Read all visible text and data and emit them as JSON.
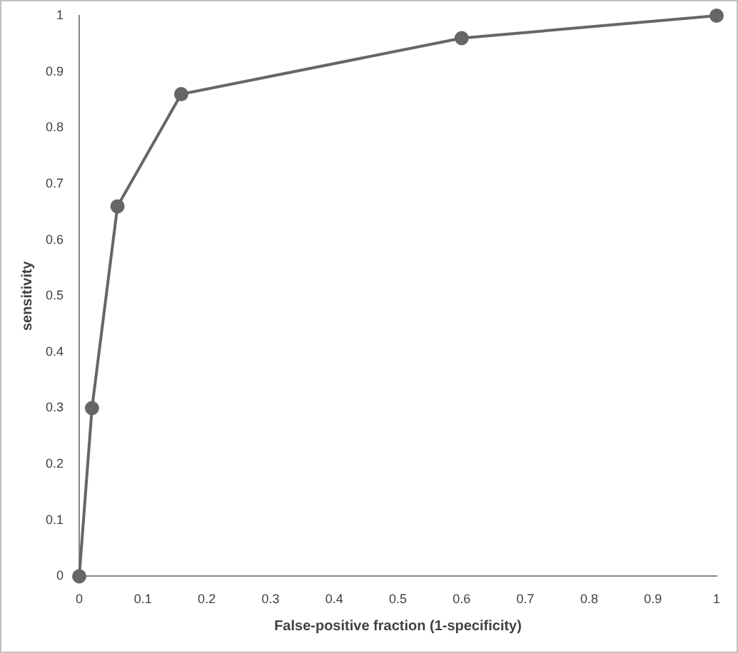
{
  "chart_data": {
    "type": "line",
    "xlabel": "False-positive fraction (1-specificity)",
    "ylabel": "sensitivity",
    "x": [
      0,
      0.02,
      0.06,
      0.16,
      0.6,
      1
    ],
    "series": [
      {
        "color": "#666666",
        "values": [
          0,
          0.3,
          0.66,
          0.86,
          0.96,
          1
        ]
      }
    ],
    "xlim": [
      0,
      1
    ],
    "xticks": [
      0,
      0.1,
      0.2,
      0.3,
      0.4,
      0.5,
      0.6,
      0.7,
      0.8,
      0.9,
      1
    ],
    "ylim": [
      0,
      1
    ],
    "yticks": [
      0,
      0.1,
      0.2,
      0.3,
      0.4,
      0.5,
      0.6,
      0.7,
      0.8,
      0.9,
      1
    ],
    "grid": false,
    "legend": false,
    "marker": "circle",
    "line_style": "solid"
  }
}
